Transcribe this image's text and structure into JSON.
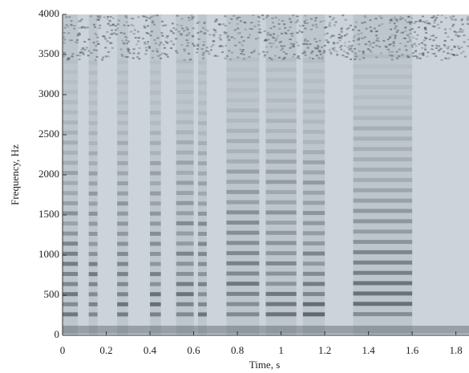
{
  "chart_data": {
    "type": "spectrogram",
    "xlabel": "Time, s",
    "ylabel": "Frequency, Hz",
    "xlim": [
      0,
      1.86
    ],
    "ylim": [
      0,
      4000
    ],
    "xticks": [
      0,
      0.2,
      0.4,
      0.6,
      0.8,
      1,
      1.2,
      1.4,
      1.6,
      1.8
    ],
    "yticks": [
      0,
      500,
      1000,
      1500,
      2000,
      2500,
      3000,
      3500,
      4000
    ]
  }
}
